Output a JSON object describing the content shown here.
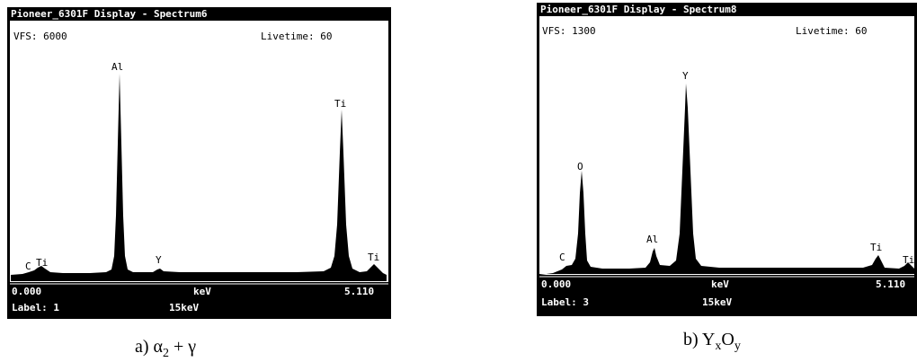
{
  "panels": [
    {
      "title": "Pioneer_6301F Display - Spectrum6",
      "vfs": "VFS: 6000",
      "livetime": "Livetime: 60",
      "peak_labels": [
        "C",
        "Ti",
        "Al",
        "Y",
        "Ti",
        "Ti"
      ],
      "x_start": "0.000",
      "x_unit": "keV",
      "x_end": "5.110",
      "label": "Label: 1",
      "voltage": "15keV",
      "caption": [
        "a) α",
        "2",
        " + γ"
      ]
    },
    {
      "title": "Pioneer_6301F Display - Spectrum8",
      "vfs": "VFS: 1300",
      "livetime": "Livetime: 60",
      "peak_labels": [
        "C",
        "O",
        "Al",
        "Y",
        "Ti",
        "Ti"
      ],
      "x_start": "0.000",
      "x_unit": "keV",
      "x_end": "5.110",
      "label": "Label: 3",
      "voltage": "15keV",
      "caption": [
        "b)  Y",
        "x",
        "O",
        "y"
      ]
    }
  ]
}
